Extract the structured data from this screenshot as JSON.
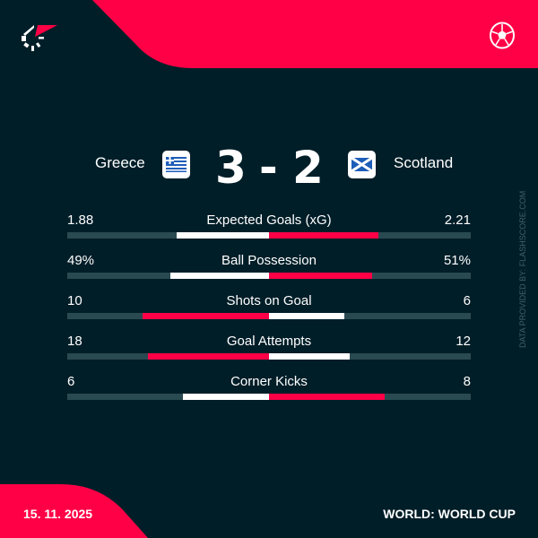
{
  "colors": {
    "background": "#001e28",
    "accent": "#ff0046",
    "track": "#2a4a52",
    "neutral": "#ffffff"
  },
  "header": {
    "logo_icon": "flashscore-logo",
    "sport_icon": "soccer-ball-icon"
  },
  "match": {
    "home": {
      "name": "Greece",
      "flag_icon": "greece-flag"
    },
    "away": {
      "name": "Scotland",
      "flag_icon": "scotland-flag"
    },
    "home_score": "3",
    "separator": "-",
    "away_score": "2"
  },
  "stats": [
    {
      "label": "Expected Goals (xG)",
      "home": "1.88",
      "away": "2.21",
      "home_val": 1.88,
      "away_val": 2.21
    },
    {
      "label": "Ball Possession",
      "home": "49%",
      "away": "51%",
      "home_val": 49,
      "away_val": 51
    },
    {
      "label": "Shots on Goal",
      "home": "10",
      "away": "6",
      "home_val": 10,
      "away_val": 6
    },
    {
      "label": "Goal Attempts",
      "home": "18",
      "away": "12",
      "home_val": 18,
      "away_val": 12
    },
    {
      "label": "Corner Kicks",
      "home": "6",
      "away": "8",
      "home_val": 6,
      "away_val": 8
    }
  ],
  "footer": {
    "date": "15. 11. 2025",
    "competition": "WORLD: WORLD CUP"
  },
  "credit": "DATA PROVIDED BY: FLASHSCORE.COM"
}
